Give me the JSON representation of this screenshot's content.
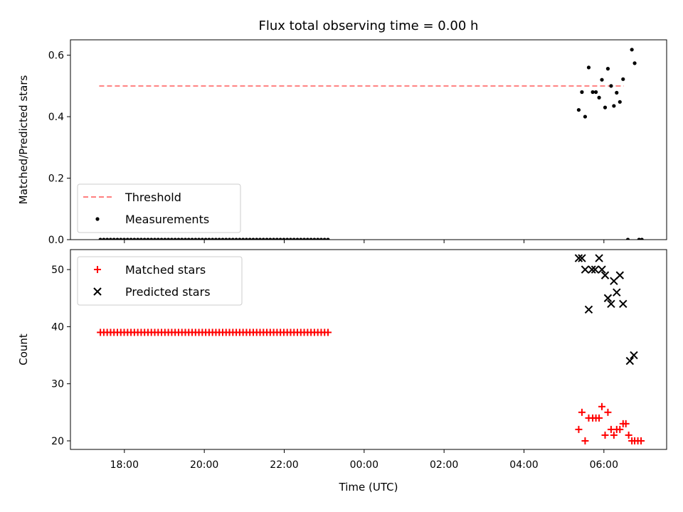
{
  "chart_data": [
    {
      "type": "scatter",
      "title": "Flux total observing time = 0.00 h",
      "ylabel": "Matched/Predicted stars",
      "xlabel": "",
      "x_unit": "hours since 00:00 UTC (negative = previous day)",
      "xlim": [
        -7.35,
        7.57
      ],
      "ylim": [
        0.0,
        0.65
      ],
      "yticks": [
        0.0,
        0.2,
        0.4,
        0.6
      ],
      "ytick_labels": [
        "0.0",
        "0.2",
        "0.4",
        "0.6"
      ],
      "xticks": [
        -6,
        -4,
        -2,
        0,
        2,
        4,
        6
      ],
      "legend_position": "lower-left",
      "threshold": {
        "name": "Threshold",
        "value": 0.5,
        "x": [
          -6.63,
          6.5
        ],
        "color": "#ff7f7f",
        "style": "dashed"
      },
      "series": [
        {
          "name": "Measurements",
          "color": "#000000",
          "marker": "dot",
          "points": [
            [
              5.37,
              0.422
            ],
            [
              5.45,
              0.48
            ],
            [
              5.53,
              0.4
            ],
            [
              5.62,
              0.56
            ],
            [
              5.72,
              0.48
            ],
            [
              5.8,
              0.48
            ],
            [
              5.88,
              0.462
            ],
            [
              5.95,
              0.52
            ],
            [
              6.03,
              0.43
            ],
            [
              6.1,
              0.556
            ],
            [
              6.18,
              0.5
            ],
            [
              6.25,
              0.435
            ],
            [
              6.32,
              0.478
            ],
            [
              6.4,
              0.448
            ],
            [
              6.48,
              0.522
            ],
            [
              6.7,
              0.618
            ],
            [
              6.77,
              0.574
            ],
            [
              6.6,
              0.0
            ],
            [
              6.88,
              0.0
            ],
            [
              6.95,
              0.0
            ]
          ],
          "zero_run": {
            "x_start": -6.6,
            "x_end": -0.9,
            "step": 0.085,
            "y": 0.0
          }
        }
      ]
    },
    {
      "type": "scatter",
      "title": "",
      "ylabel": "Count",
      "xlabel": "Time (UTC)",
      "x_unit": "hours since 00:00 UTC (negative = previous day)",
      "xlim": [
        -7.35,
        7.57
      ],
      "ylim": [
        18.5,
        53.5
      ],
      "yticks": [
        20,
        30,
        40,
        50
      ],
      "ytick_labels": [
        "20",
        "30",
        "40",
        "50"
      ],
      "xticks": [
        -6,
        -4,
        -2,
        0,
        2,
        4,
        6
      ],
      "xtick_labels": [
        "18:00",
        "20:00",
        "22:00",
        "00:00",
        "02:00",
        "04:00",
        "06:00"
      ],
      "legend_position": "upper-left",
      "series": [
        {
          "name": "Matched stars",
          "color": "#ff0000",
          "marker": "plus",
          "points": [
            [
              5.37,
              22
            ],
            [
              5.45,
              25
            ],
            [
              5.53,
              20
            ],
            [
              5.62,
              24
            ],
            [
              5.72,
              24
            ],
            [
              5.8,
              24
            ],
            [
              5.88,
              24
            ],
            [
              5.95,
              26
            ],
            [
              6.03,
              21
            ],
            [
              6.1,
              25
            ],
            [
              6.18,
              22
            ],
            [
              6.25,
              21
            ],
            [
              6.32,
              22
            ],
            [
              6.4,
              22
            ],
            [
              6.48,
              23
            ],
            [
              6.55,
              23
            ],
            [
              6.62,
              21
            ],
            [
              6.7,
              20
            ],
            [
              6.77,
              20
            ],
            [
              6.85,
              20
            ],
            [
              6.93,
              20
            ]
          ],
          "constant_run": {
            "x_start": -6.6,
            "x_end": -0.85,
            "step": 0.085,
            "y": 39
          }
        },
        {
          "name": "Predicted stars",
          "color": "#000000",
          "marker": "x",
          "points": [
            [
              5.37,
              52
            ],
            [
              5.45,
              52
            ],
            [
              5.53,
              50
            ],
            [
              5.62,
              43
            ],
            [
              5.7,
              50
            ],
            [
              5.78,
              50
            ],
            [
              5.88,
              52
            ],
            [
              5.95,
              50
            ],
            [
              6.03,
              49
            ],
            [
              6.1,
              45
            ],
            [
              6.18,
              44
            ],
            [
              6.25,
              48
            ],
            [
              6.32,
              46
            ],
            [
              6.4,
              49
            ],
            [
              6.48,
              44
            ],
            [
              6.65,
              34
            ],
            [
              6.75,
              35
            ]
          ]
        }
      ]
    }
  ]
}
